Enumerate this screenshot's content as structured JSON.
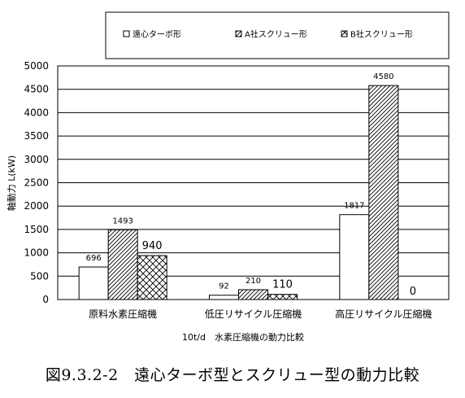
{
  "chart_data": {
    "type": "bar",
    "title": "",
    "xlabel": "10t/d　水素圧縮機の動力比較",
    "ylabel": "軸動力 L(kW)",
    "ylim": [
      0,
      5000
    ],
    "y_ticks": [
      0,
      500,
      1000,
      1500,
      2000,
      2500,
      3000,
      3500,
      4000,
      4500,
      5000
    ],
    "grid": true,
    "legend_position": "top",
    "categories": [
      "原料水素圧縮機",
      "低圧リサイクル圧縮機",
      "高圧リサイクル圧縮機"
    ],
    "series": [
      {
        "name": "遠心ターボ形",
        "pattern": "plain",
        "values": [
          696,
          92,
          1817
        ],
        "labels": [
          "696",
          "92",
          "1817"
        ]
      },
      {
        "name": "A社スクリュー形",
        "pattern": "diagonal-hatch",
        "values": [
          1493,
          210,
          4580
        ],
        "labels": [
          "1493",
          "210",
          "4580"
        ]
      },
      {
        "name": "B社スクリュー形",
        "pattern": "cross-hatch",
        "values": [
          940,
          110,
          0
        ],
        "labels": [
          "940",
          "110",
          "0"
        ]
      }
    ]
  },
  "caption": "図9.3.2-2　遠心ターボ型とスクリュー型の動力比較",
  "colors": {
    "background": "#ffffff",
    "ink": "#000000"
  }
}
